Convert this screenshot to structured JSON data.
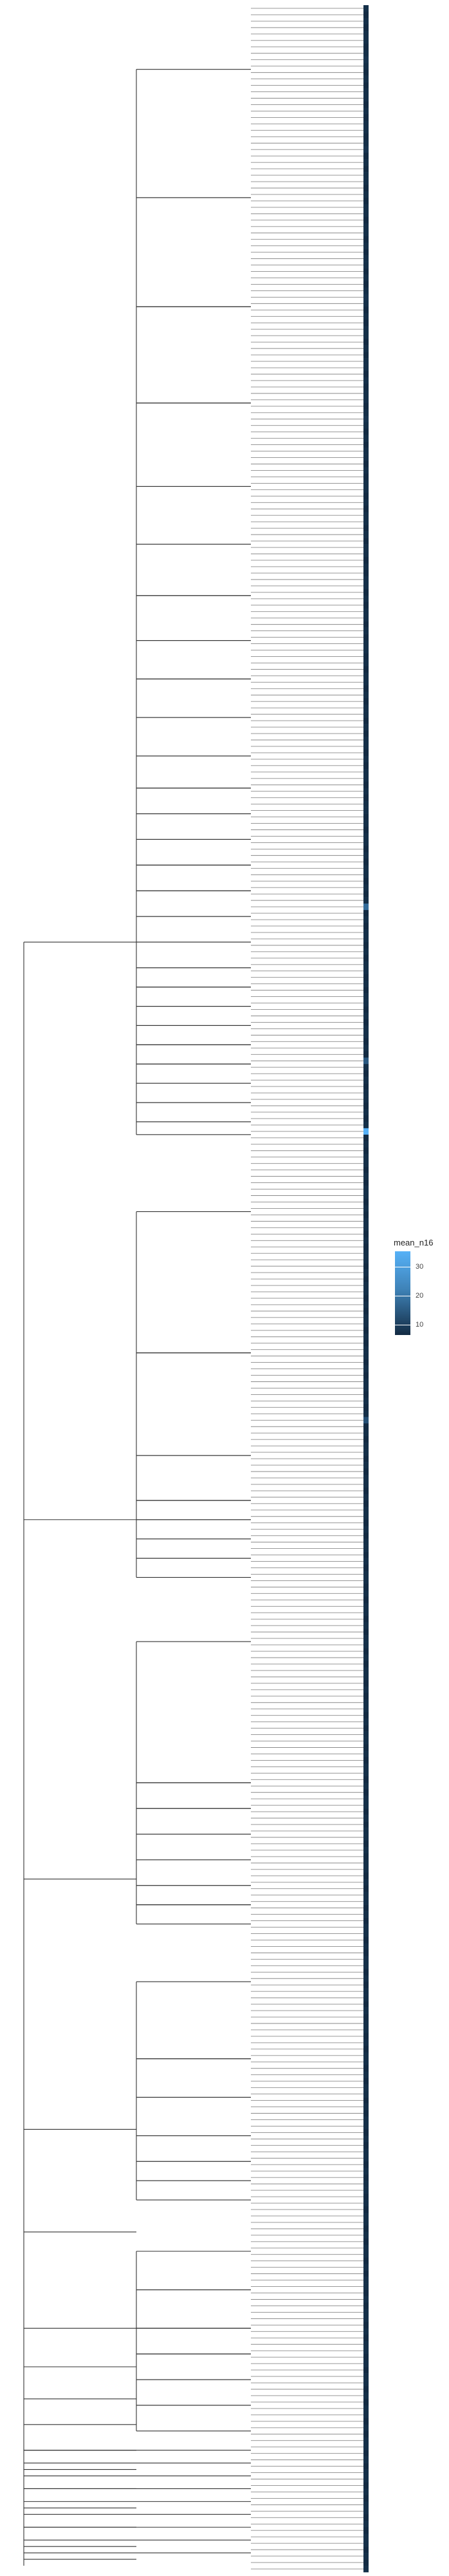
{
  "chart_data": {
    "type": "heatmap",
    "title": "",
    "xlabel": "",
    "ylabel": "",
    "row_count": 400,
    "legend": {
      "title": "mean_n16",
      "ticks": [
        30,
        20,
        10
      ],
      "range": [
        4,
        33
      ],
      "low_color": "#132B43",
      "high_color": "#56B1F7",
      "placement": "right"
    },
    "tile_values": [
      5,
      4,
      5,
      4,
      5,
      5,
      4,
      5,
      6,
      5,
      4,
      5,
      4,
      5,
      5,
      4,
      5,
      4,
      5,
      5,
      4,
      5,
      6,
      4,
      5,
      4,
      5,
      5,
      4,
      5,
      4,
      5,
      5,
      4,
      5,
      5,
      4,
      5,
      4,
      5,
      5,
      4,
      5,
      4,
      5,
      6,
      5,
      4,
      5,
      4,
      5,
      5,
      4,
      5,
      4,
      5,
      5,
      4,
      5,
      4,
      5,
      5,
      4,
      5,
      6,
      5,
      4,
      5,
      4,
      5,
      5,
      4,
      5,
      4,
      5,
      5,
      4,
      5,
      4,
      5,
      5,
      4,
      5,
      4,
      5,
      5,
      4,
      5,
      4,
      5,
      5,
      4,
      5,
      4,
      5,
      5,
      4,
      5,
      4,
      5,
      5,
      4,
      5,
      4,
      5,
      5,
      4,
      5,
      4,
      5,
      5,
      4,
      5,
      4,
      5,
      5,
      4,
      5,
      4,
      5,
      5,
      4,
      5,
      4,
      5,
      5,
      4,
      5,
      4,
      5,
      5,
      4,
      5,
      4,
      5,
      5,
      4,
      5,
      4,
      5,
      18,
      4,
      5,
      4,
      5,
      5,
      4,
      5,
      4,
      5,
      5,
      4,
      5,
      4,
      5,
      5,
      4,
      5,
      4,
      5,
      5,
      4,
      5,
      4,
      14,
      5,
      4,
      5,
      4,
      5,
      5,
      4,
      5,
      4,
      5,
      33,
      4,
      5,
      4,
      5,
      5,
      4,
      5,
      4,
      5,
      5,
      4,
      5,
      4,
      5,
      5,
      4,
      5,
      4,
      5,
      5,
      4,
      5,
      4,
      5,
      5,
      4,
      5,
      4,
      5,
      5,
      4,
      5,
      4,
      5,
      5,
      4,
      5,
      4,
      5,
      5,
      4,
      5,
      4,
      5,
      12,
      4,
      5,
      4,
      5,
      5,
      4,
      5,
      4,
      5,
      5,
      4,
      5,
      4,
      5,
      5,
      4,
      5,
      4,
      5,
      5,
      4,
      5,
      4,
      5,
      5,
      4,
      5,
      4,
      5,
      5,
      4,
      5,
      4,
      5,
      5,
      4,
      5,
      4,
      5,
      5,
      4,
      5,
      4,
      5,
      5,
      4,
      5,
      4,
      5,
      5,
      4,
      5,
      4,
      5,
      5,
      4,
      5,
      4,
      5,
      5,
      4,
      5,
      4,
      5,
      5,
      4,
      5,
      4,
      5,
      5,
      4,
      5,
      4,
      5,
      5,
      4,
      5,
      4,
      5,
      5,
      4,
      5,
      4,
      5,
      5,
      4,
      5,
      4,
      5,
      5,
      4,
      5,
      4,
      5,
      5,
      4,
      5,
      4,
      5,
      5,
      4,
      5,
      4,
      5,
      5,
      4,
      5,
      4,
      5,
      5,
      4,
      5,
      4,
      5,
      5,
      4,
      5,
      4,
      5,
      5,
      4,
      5,
      4,
      5,
      5,
      4,
      5,
      4,
      5,
      5,
      4,
      5,
      4,
      5,
      5,
      4,
      5,
      4,
      5,
      5,
      4,
      5,
      4,
      5,
      5,
      4,
      5,
      4,
      5,
      5,
      4,
      5,
      4,
      5,
      5,
      4,
      5,
      4,
      5,
      5,
      4,
      5,
      4,
      5,
      5,
      4,
      5,
      4,
      5,
      5,
      4,
      5,
      4,
      5,
      5,
      4,
      5,
      4,
      5,
      5,
      4,
      5,
      4,
      5,
      5,
      4,
      5,
      4,
      5
    ]
  }
}
